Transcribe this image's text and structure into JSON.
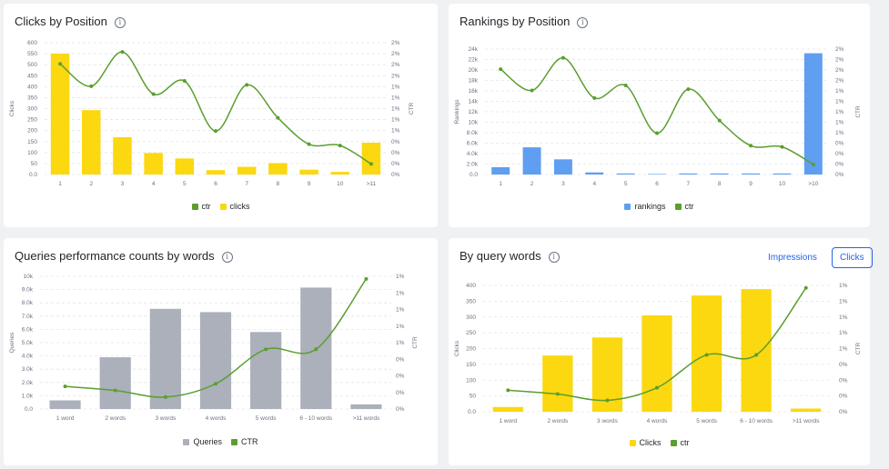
{
  "chart_data": [
    {
      "type": "bar",
      "title": "Clicks by Position",
      "ylabel": "Clicks",
      "y2label": "CTR",
      "categories": [
        "1",
        "2",
        "3",
        "4",
        "5",
        "6",
        "7",
        "8",
        "9",
        "10",
        ">11"
      ],
      "ylim": [
        0,
        600
      ],
      "yticks": [
        "0.0",
        "50",
        "100",
        "150",
        "200",
        "250",
        "300",
        "350",
        "400",
        "450",
        "500",
        "550",
        "600"
      ],
      "y2ticks": [
        "0%",
        "0%",
        "0%",
        "0%",
        "1%",
        "1%",
        "1%",
        "1%",
        "1%",
        "2%",
        "2%",
        "2%",
        "2%"
      ],
      "series": [
        {
          "name": "ctr",
          "kind": "line",
          "values": [
            0.84,
            0.67,
            0.93,
            0.61,
            0.71,
            0.33,
            0.68,
            0.43,
            0.23,
            0.22,
            0.08
          ],
          "color": "#5a9e2f"
        },
        {
          "name": "clicks",
          "kind": "bar",
          "values": [
            550,
            293,
            170,
            98,
            73,
            20,
            35,
            52,
            22,
            12,
            145
          ],
          "color": "#fbd80f"
        }
      ],
      "legend_order": [
        "ctr",
        "clicks"
      ],
      "grid": true
    },
    {
      "type": "bar",
      "title": "Rankings by Position",
      "ylabel": "Rankings",
      "y2label": "CTR",
      "categories": [
        "1",
        "2",
        "3",
        "4",
        "5",
        "6",
        "7",
        "8",
        "9",
        "10",
        ">10"
      ],
      "ylim": [
        0,
        24000
      ],
      "yticks": [
        "0.0",
        "2.0k",
        "4.0k",
        "6.0k",
        "8.0k",
        "10k",
        "12k",
        "14k",
        "16k",
        "18k",
        "20k",
        "22k",
        "24k"
      ],
      "y2ticks": [
        "0%",
        "0%",
        "0%",
        "0%",
        "1%",
        "1%",
        "1%",
        "1%",
        "1%",
        "2%",
        "2%",
        "2%",
        "2%"
      ],
      "series": [
        {
          "name": "rankings",
          "kind": "bar",
          "values": [
            1400,
            5200,
            2900,
            400,
            200,
            100,
            200,
            200,
            200,
            200,
            23200
          ],
          "color": "#5f9ef0"
        },
        {
          "name": "ctr",
          "kind": "line",
          "values": [
            0.84,
            0.67,
            0.93,
            0.61,
            0.71,
            0.33,
            0.68,
            0.43,
            0.23,
            0.22,
            0.08
          ],
          "color": "#5a9e2f"
        }
      ],
      "legend_order": [
        "rankings",
        "ctr"
      ],
      "grid": true
    },
    {
      "type": "bar",
      "title": "Queries performance counts by words",
      "ylabel": "Queries",
      "y2label": "CTR",
      "categories": [
        "1 word",
        "2 words",
        "3 words",
        "4 words",
        "5 words",
        "6 - 10 words",
        ">11 words"
      ],
      "ylim": [
        0,
        10000
      ],
      "yticks": [
        "0.0",
        "1.0k",
        "2.0k",
        "3.0k",
        "4.0k",
        "5.0k",
        "6.0k",
        "7.0k",
        "8.0k",
        "9.0k",
        "10k"
      ],
      "y2ticks": [
        "0%",
        "0%",
        "0%",
        "0%",
        "1%",
        "1%",
        "1%",
        "1%",
        "1%"
      ],
      "series": [
        {
          "name": "Queries",
          "kind": "bar",
          "values": [
            650,
            3900,
            7550,
            7300,
            5800,
            9150,
            350
          ],
          "color": "#abb0ba"
        },
        {
          "name": "CTR",
          "kind": "line",
          "values": [
            0.17,
            0.14,
            0.09,
            0.19,
            0.45,
            0.45,
            0.98
          ],
          "color": "#5a9e2f"
        }
      ],
      "legend_order": [
        "Queries",
        "CTR"
      ],
      "grid": true
    },
    {
      "type": "bar",
      "title": "By query words",
      "ylabel": "Clicks",
      "y2label": "CTR",
      "categories": [
        "1 word",
        "2 words",
        "3 words",
        "4 words",
        "5 words",
        "6 - 10 words",
        ">11 words"
      ],
      "ylim": [
        0,
        400
      ],
      "yticks": [
        "0.0",
        "50",
        "100",
        "150",
        "200",
        "250",
        "300",
        "350",
        "400"
      ],
      "y2ticks": [
        "0%",
        "0%",
        "0%",
        "0%",
        "1%",
        "1%",
        "1%",
        "1%",
        "1%"
      ],
      "series": [
        {
          "name": "Clicks",
          "kind": "bar",
          "values": [
            15,
            178,
            235,
            305,
            368,
            388,
            10
          ],
          "color": "#fbd80f"
        },
        {
          "name": "ctr",
          "kind": "line",
          "values": [
            0.17,
            0.14,
            0.09,
            0.19,
            0.45,
            0.45,
            0.98
          ],
          "color": "#5a9e2f"
        }
      ],
      "legend_order": [
        "Clicks",
        "ctr"
      ],
      "grid": true
    }
  ],
  "toggle": {
    "impressions_label": "Impressions",
    "clicks_label": "Clicks"
  },
  "info_glyph": "i"
}
